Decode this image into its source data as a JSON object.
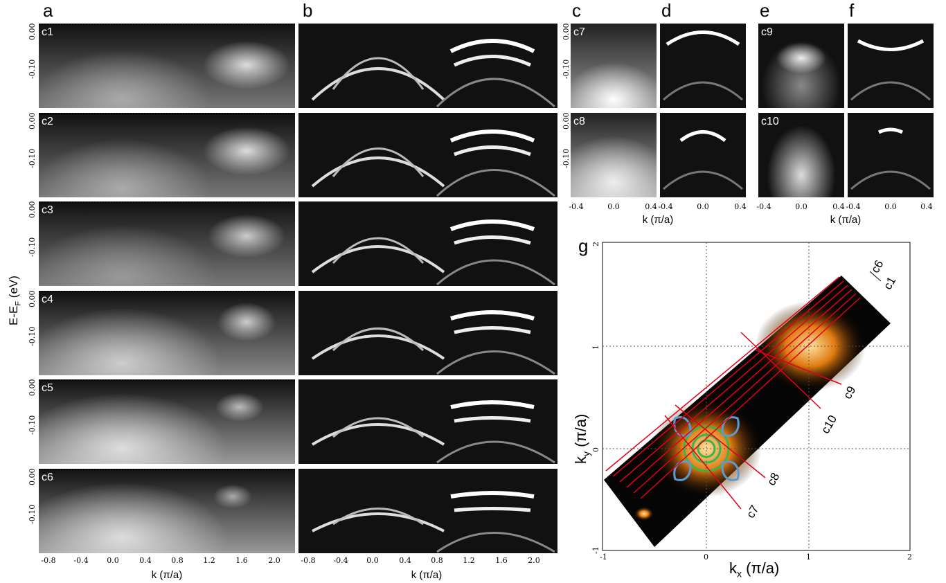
{
  "panel_letters": {
    "a": "a",
    "b": "b",
    "c": "c",
    "d": "d",
    "e": "e",
    "f": "f",
    "g": "g"
  },
  "cut_labels": [
    "c1",
    "c2",
    "c3",
    "c4",
    "c5",
    "c6"
  ],
  "small_cut_labels": {
    "c_top": "c7",
    "c_bottom": "c8",
    "e_top": "c9",
    "e_bottom": "c10"
  },
  "y_ticks": [
    "0.00",
    "-0.10"
  ],
  "y_axis_label": "E-E",
  "y_axis_sub": "F",
  "y_axis_unit": " (eV)",
  "x_ticks_ab": [
    "-0.8",
    "-0.4",
    "0.0",
    "0.4",
    "0.8",
    "1.2",
    "1.6",
    "2.0"
  ],
  "x_ticks_small": [
    "-0.4",
    "0.0",
    "0.4"
  ],
  "x_label": "k (π/a)",
  "g_panel": {
    "xticks": [
      "-1",
      "0",
      "1",
      "2"
    ],
    "yticks": [
      "2",
      "1",
      "0",
      "-1"
    ],
    "xlabel_main": "k",
    "xlabel_sub": "x",
    "xlabel_unit": " (π/a)",
    "ylabel_main": "k",
    "ylabel_sub": "y",
    "ylabel_unit": " (π/a)",
    "cut_annotations": [
      "c6",
      "c1",
      "c9",
      "c10",
      "c8",
      "c7"
    ]
  },
  "colors": {
    "arrow_blue": "#5a8fd6",
    "arrow_green": "#3aa33a",
    "cut_red": "#e0001b",
    "fs_blue": "#5b9bd5",
    "fs_green": "#3ab54a"
  }
}
